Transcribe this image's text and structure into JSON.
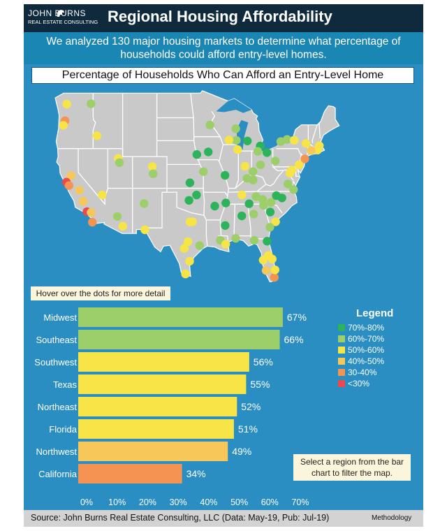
{
  "header": {
    "logo_name": "JOHN BURNS",
    "logo_sub": "REAL ESTATE CONSULTING",
    "title": "Regional Housing Affordability"
  },
  "subtitle": "We analyzed 130 major housing markets to determine what percentage of households could afford entry-level homes.",
  "map_title": "Percentage of Households Who Can Afford an Entry-Level Home",
  "hover_note": "Hover over the dots for more detail",
  "filter_note": "Select a region from the bar chart to filter the map.",
  "legend": {
    "title": "Legend",
    "items": [
      {
        "label": "70%-80%",
        "color": "#2db35a"
      },
      {
        "label": "60%-70%",
        "color": "#9ccf6a"
      },
      {
        "label": "50%-60%",
        "color": "#f7e548"
      },
      {
        "label": "40%-50%",
        "color": "#f7c75a"
      },
      {
        "label": "30-40%",
        "color": "#f59352"
      },
      {
        "label": "<30%",
        "color": "#ea4a4f"
      }
    ]
  },
  "footer": {
    "source": "Source: John Burns Real Estate Consulting, LLC (Data: May-19, Pub: Jul-19)",
    "methodology": "Methodology"
  },
  "map_colors": {
    "land": "#c9c9c9",
    "border": "#ffffff",
    "ocean": "#2a8ec2"
  },
  "chart_data": {
    "type": "bar",
    "orientation": "horizontal",
    "categories": [
      "Midwest",
      "Southeast",
      "Southwest",
      "Texas",
      "Northeast",
      "Florida",
      "Northwest",
      "California"
    ],
    "values": [
      67,
      66,
      56,
      55,
      52,
      51,
      49,
      34
    ],
    "value_labels": [
      "67%",
      "66%",
      "56%",
      "55%",
      "52%",
      "51%",
      "49%",
      "34%"
    ],
    "colors": [
      "#9ccf6a",
      "#9ccf6a",
      "#f7e548",
      "#f7e548",
      "#f7e548",
      "#f7e548",
      "#f7c75a",
      "#f59352"
    ],
    "x_ticks": [
      "0%",
      "10%",
      "20%",
      "30%",
      "40%",
      "50%",
      "60%",
      "70%"
    ],
    "xlim": [
      0,
      70
    ],
    "grid": false
  },
  "map_markers": [
    {
      "lon": -122.68,
      "lat": 45.52,
      "color": "#f59352"
    },
    {
      "lon": -122.33,
      "lat": 47.61,
      "color": "#f7e548"
    },
    {
      "lon": -117.43,
      "lat": 47.66,
      "color": "#9ccf6a"
    },
    {
      "lon": -123.04,
      "lat": 44.94,
      "color": "#f7e548"
    },
    {
      "lon": -116.2,
      "lat": 43.62,
      "color": "#f7e548"
    },
    {
      "lon": -111.89,
      "lat": 40.76,
      "color": "#f7e548"
    },
    {
      "lon": -111.65,
      "lat": 40.23,
      "color": "#9ccf6a"
    },
    {
      "lon": -121.49,
      "lat": 38.58,
      "color": "#f7c75a"
    },
    {
      "lon": -122.42,
      "lat": 37.77,
      "color": "#ea4a4f"
    },
    {
      "lon": -121.89,
      "lat": 37.34,
      "color": "#f59352"
    },
    {
      "lon": -119.79,
      "lat": 36.74,
      "color": "#f7c75a"
    },
    {
      "lon": -119.02,
      "lat": 35.37,
      "color": "#f7c75a"
    },
    {
      "lon": -118.24,
      "lat": 34.05,
      "color": "#ea4a4f"
    },
    {
      "lon": -117.4,
      "lat": 33.95,
      "color": "#f7c75a"
    },
    {
      "lon": -117.16,
      "lat": 32.72,
      "color": "#f59352"
    },
    {
      "lon": -115.14,
      "lat": 36.17,
      "color": "#f7e548"
    },
    {
      "lon": -112.07,
      "lat": 33.45,
      "color": "#9ccf6a"
    },
    {
      "lon": -110.97,
      "lat": 32.22,
      "color": "#f7e548"
    },
    {
      "lon": -106.65,
      "lat": 35.08,
      "color": "#9ccf6a"
    },
    {
      "lon": -104.99,
      "lat": 39.74,
      "color": "#f7e548"
    },
    {
      "lon": -104.82,
      "lat": 38.83,
      "color": "#9ccf6a"
    },
    {
      "lon": -106.49,
      "lat": 31.76,
      "color": "#f7e548"
    },
    {
      "lon": -97.52,
      "lat": 35.47,
      "color": "#2db35a"
    },
    {
      "lon": -95.99,
      "lat": 36.15,
      "color": "#2db35a"
    },
    {
      "lon": -96.8,
      "lat": 32.78,
      "color": "#f7e548"
    },
    {
      "lon": -97.33,
      "lat": 32.76,
      "color": "#f7e548"
    },
    {
      "lon": -97.74,
      "lat": 30.27,
      "color": "#f7e548"
    },
    {
      "lon": -98.49,
      "lat": 29.42,
      "color": "#f7e548"
    },
    {
      "lon": -95.37,
      "lat": 29.76,
      "color": "#9ccf6a"
    },
    {
      "lon": -97.4,
      "lat": 27.8,
      "color": "#f7e548"
    },
    {
      "lon": -98.23,
      "lat": 26.2,
      "color": "#f7e548"
    },
    {
      "lon": -97.34,
      "lat": 37.69,
      "color": "#2db35a"
    },
    {
      "lon": -94.58,
      "lat": 39.1,
      "color": "#9ccf6a"
    },
    {
      "lon": -95.94,
      "lat": 41.26,
      "color": "#2db35a"
    },
    {
      "lon": -93.61,
      "lat": 41.59,
      "color": "#2db35a"
    },
    {
      "lon": -93.27,
      "lat": 44.98,
      "color": "#9ccf6a"
    },
    {
      "lon": -90.2,
      "lat": 38.63,
      "color": "#2db35a"
    },
    {
      "lon": -92.29,
      "lat": 34.75,
      "color": "#2db35a"
    },
    {
      "lon": -90.05,
      "lat": 35.15,
      "color": "#2db35a"
    },
    {
      "lon": -90.18,
      "lat": 32.3,
      "color": "#2db35a"
    },
    {
      "lon": -91.15,
      "lat": 30.45,
      "color": "#9ccf6a"
    },
    {
      "lon": -90.07,
      "lat": 29.95,
      "color": "#f7e548"
    },
    {
      "lon": -88.04,
      "lat": 30.69,
      "color": "#9ccf6a"
    },
    {
      "lon": -86.8,
      "lat": 33.52,
      "color": "#2db35a"
    },
    {
      "lon": -86.78,
      "lat": 36.16,
      "color": "#f7e548"
    },
    {
      "lon": -85.76,
      "lat": 38.25,
      "color": "#9ccf6a"
    },
    {
      "lon": -84.5,
      "lat": 38.04,
      "color": "#9ccf6a"
    },
    {
      "lon": -84.51,
      "lat": 39.1,
      "color": "#9ccf6a"
    },
    {
      "lon": -83.0,
      "lat": 39.96,
      "color": "#9ccf6a"
    },
    {
      "lon": -86.16,
      "lat": 39.77,
      "color": "#f7e548"
    },
    {
      "lon": -87.63,
      "lat": 41.88,
      "color": "#f7e548"
    },
    {
      "lon": -87.91,
      "lat": 43.04,
      "color": "#9ccf6a"
    },
    {
      "lon": -89.4,
      "lat": 43.07,
      "color": "#f7e548"
    },
    {
      "lon": -88.02,
      "lat": 44.51,
      "color": "#9ccf6a"
    },
    {
      "lon": -85.67,
      "lat": 42.96,
      "color": "#2db35a"
    },
    {
      "lon": -83.05,
      "lat": 42.33,
      "color": "#2db35a"
    },
    {
      "lon": -81.69,
      "lat": 41.5,
      "color": "#2db35a"
    },
    {
      "lon": -79.99,
      "lat": 40.44,
      "color": "#9ccf6a"
    },
    {
      "lon": -83.55,
      "lat": 41.65,
      "color": "#9ccf6a"
    },
    {
      "lon": -78.88,
      "lat": 42.89,
      "color": "#9ccf6a"
    },
    {
      "lon": -77.61,
      "lat": 43.16,
      "color": "#9ccf6a"
    },
    {
      "lon": -76.15,
      "lat": 43.05,
      "color": "#f7e548"
    },
    {
      "lon": -73.76,
      "lat": 42.65,
      "color": "#f7e548"
    },
    {
      "lon": -71.06,
      "lat": 42.36,
      "color": "#f7e548"
    },
    {
      "lon": -71.41,
      "lat": 41.82,
      "color": "#f7e548"
    },
    {
      "lon": -72.68,
      "lat": 41.76,
      "color": "#f7c75a"
    },
    {
      "lon": -74.01,
      "lat": 40.71,
      "color": "#f59352"
    },
    {
      "lon": -75.17,
      "lat": 39.95,
      "color": "#f7e548"
    },
    {
      "lon": -76.61,
      "lat": 39.29,
      "color": "#f7e548"
    },
    {
      "lon": -77.04,
      "lat": 38.91,
      "color": "#f7e548"
    },
    {
      "lon": -77.44,
      "lat": 37.54,
      "color": "#9ccf6a"
    },
    {
      "lon": -76.29,
      "lat": 36.85,
      "color": "#9ccf6a"
    },
    {
      "lon": -78.64,
      "lat": 35.78,
      "color": "#2db35a"
    },
    {
      "lon": -80.84,
      "lat": 35.23,
      "color": "#9ccf6a"
    },
    {
      "lon": -79.79,
      "lat": 36.07,
      "color": "#2db35a"
    },
    {
      "lon": -82.55,
      "lat": 35.6,
      "color": "#9ccf6a"
    },
    {
      "lon": -83.92,
      "lat": 35.96,
      "color": "#9ccf6a"
    },
    {
      "lon": -85.31,
      "lat": 35.05,
      "color": "#2db35a"
    },
    {
      "lon": -84.39,
      "lat": 33.75,
      "color": "#9ccf6a"
    },
    {
      "lon": -82.39,
      "lat": 34.85,
      "color": "#9ccf6a"
    },
    {
      "lon": -81.03,
      "lat": 34.0,
      "color": "#2db35a"
    },
    {
      "lon": -79.93,
      "lat": 32.78,
      "color": "#f7e548"
    },
    {
      "lon": -81.1,
      "lat": 32.08,
      "color": "#9ccf6a"
    },
    {
      "lon": -81.66,
      "lat": 30.33,
      "color": "#2db35a"
    },
    {
      "lon": -84.28,
      "lat": 30.44,
      "color": "#9ccf6a"
    },
    {
      "lon": -81.38,
      "lat": 28.54,
      "color": "#f7e548"
    },
    {
      "lon": -82.46,
      "lat": 27.95,
      "color": "#f7e548"
    },
    {
      "lon": -80.61,
      "lat": 28.08,
      "color": "#f7e548"
    },
    {
      "lon": -81.87,
      "lat": 26.64,
      "color": "#f7c75a"
    },
    {
      "lon": -80.19,
      "lat": 25.76,
      "color": "#f59352"
    },
    {
      "lon": -80.05,
      "lat": 26.71,
      "color": "#f7e548"
    }
  ]
}
